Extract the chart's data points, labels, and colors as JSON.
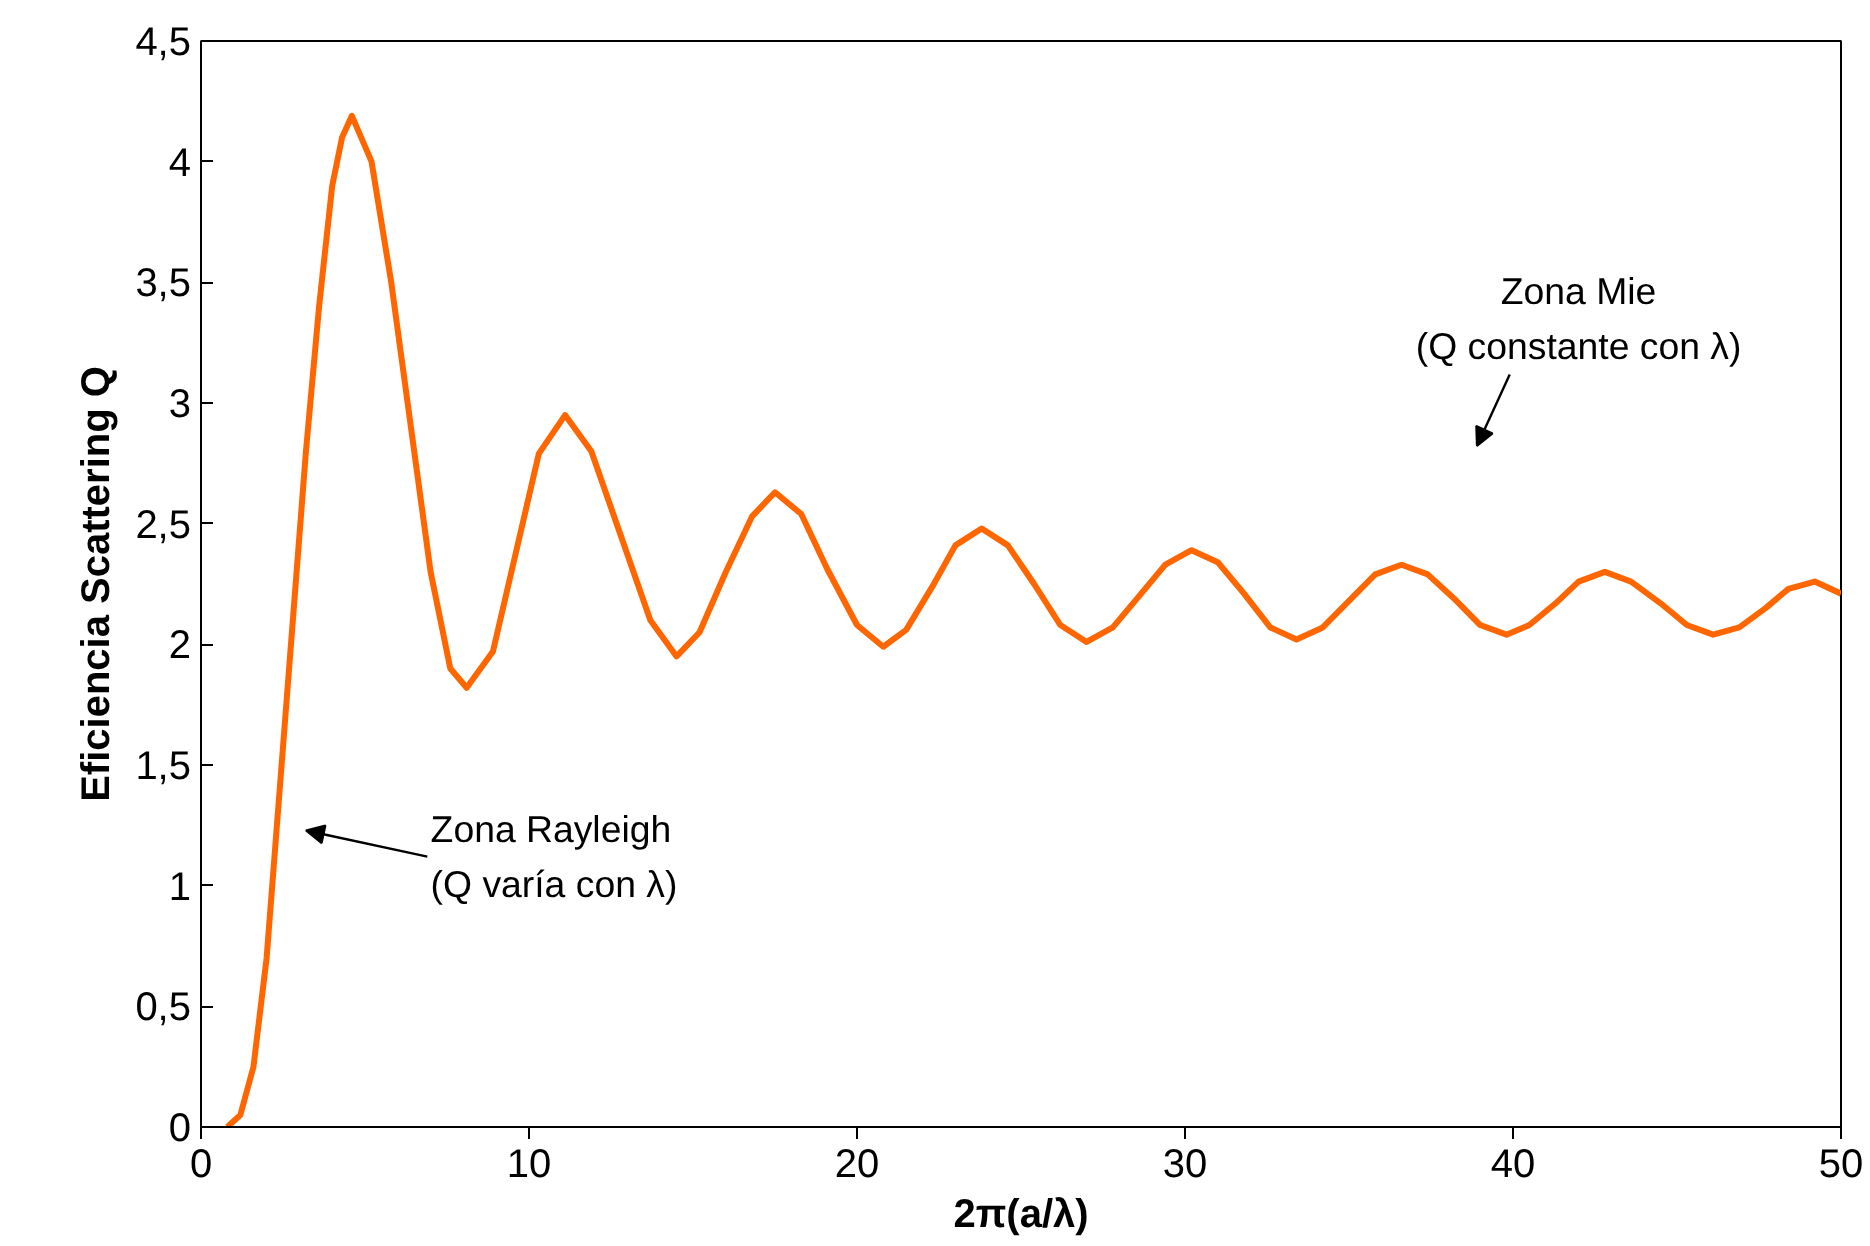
{
  "chart_data": {
    "type": "line",
    "xlabel": "2π(a/λ)",
    "ylabel": "Eficiencia Scattering Q",
    "xlim": [
      0,
      50
    ],
    "ylim": [
      0,
      4.5
    ],
    "xticks": [
      0,
      10,
      20,
      30,
      40,
      50
    ],
    "yticks": [
      0,
      {
        "value": 0.5,
        "label": "0,5"
      },
      1,
      {
        "value": 1.5,
        "label": "1,5"
      },
      2,
      {
        "value": 2.5,
        "label": "2,5"
      },
      3,
      {
        "value": 3.5,
        "label": "3,5"
      },
      4,
      {
        "value": 4.5,
        "label": "4,5"
      }
    ],
    "grid": false,
    "marker": "none",
    "line_style": "solid",
    "series": [
      {
        "color": "#ff6600",
        "x": [
          0.8,
          1.2,
          1.6,
          2.0,
          2.4,
          2.8,
          3.2,
          3.6,
          4.0,
          4.3,
          4.6,
          5.2,
          5.8,
          6.4,
          7.0,
          7.6,
          8.1,
          8.9,
          9.6,
          10.3,
          11.1,
          11.9,
          12.8,
          13.7,
          14.5,
          15.2,
          16.0,
          16.8,
          17.5,
          18.3,
          19.1,
          20.0,
          20.8,
          21.5,
          22.3,
          23.0,
          23.8,
          24.6,
          25.4,
          26.2,
          27.0,
          27.8,
          28.6,
          29.4,
          30.2,
          31.0,
          31.8,
          32.6,
          33.4,
          34.2,
          35.0,
          35.8,
          36.6,
          37.4,
          38.2,
          39.0,
          39.8,
          40.5,
          41.3,
          42.0,
          42.8,
          43.6,
          44.5,
          45.3,
          46.1,
          46.9,
          47.7,
          48.4,
          49.2,
          50.0
        ],
        "values": [
          0.0,
          0.05,
          0.25,
          0.7,
          1.4,
          2.1,
          2.8,
          3.4,
          3.9,
          4.1,
          4.19,
          4.0,
          3.5,
          2.9,
          2.3,
          1.9,
          1.82,
          1.97,
          2.38,
          2.79,
          2.95,
          2.8,
          2.45,
          2.1,
          1.95,
          2.05,
          2.3,
          2.53,
          2.63,
          2.54,
          2.31,
          2.08,
          1.99,
          2.06,
          2.24,
          2.41,
          2.48,
          2.41,
          2.25,
          2.08,
          2.01,
          2.07,
          2.2,
          2.33,
          2.39,
          2.34,
          2.21,
          2.07,
          2.02,
          2.07,
          2.18,
          2.29,
          2.33,
          2.29,
          2.19,
          2.08,
          2.04,
          2.08,
          2.17,
          2.26,
          2.3,
          2.26,
          2.17,
          2.08,
          2.04,
          2.07,
          2.15,
          2.23,
          2.26,
          2.21
        ]
      }
    ],
    "annotations": [
      "Zona Rayleigh\n(Q varía con λ)",
      "Zona Mie\n(Q constante con λ)"
    ]
  }
}
